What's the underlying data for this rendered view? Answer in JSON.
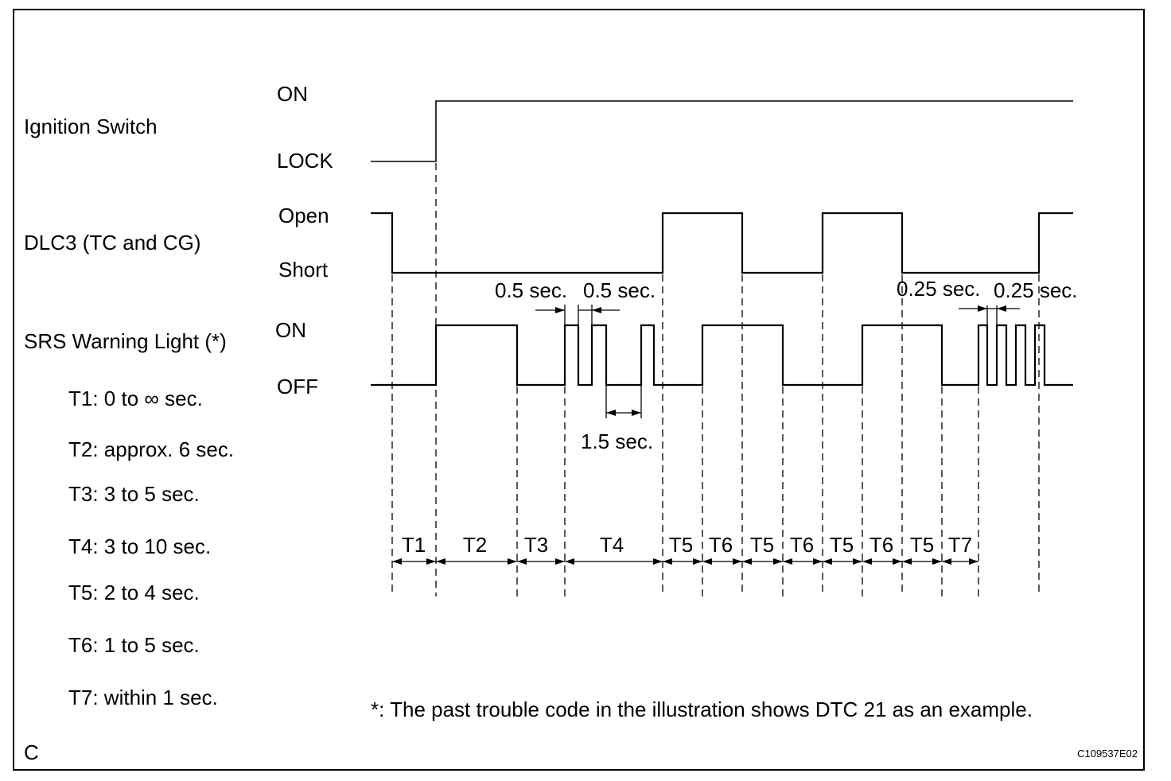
{
  "signals": {
    "ignition": {
      "name": "Ignition Switch",
      "high": "ON",
      "low": "LOCK"
    },
    "dlc3": {
      "name": "DLC3 (TC and CG)",
      "high": "Open",
      "low": "Short"
    },
    "srs": {
      "name": "SRS Warning Light (*)",
      "high": "ON",
      "low": "OFF"
    }
  },
  "legend": [
    "T1: 0 to ∞ sec.",
    "T2: approx. 6 sec.",
    "T3: 3 to 5 sec.",
    "T4: 3 to 10 sec.",
    "T5: 2 to 4 sec.",
    "T6: 1 to 5 sec.",
    "T7: within 1 sec."
  ],
  "annotations": {
    "half_sec_left": "0.5 sec.",
    "half_sec_right": "0.5 sec.",
    "one_half_sec": "1.5 sec.",
    "quarter_sec_left": "0.25 sec.",
    "quarter_sec_right": "0.25 sec."
  },
  "intervals": [
    "T1",
    "T2",
    "T3",
    "T4",
    "T5",
    "T6",
    "T5",
    "T6",
    "T5",
    "T6",
    "T5",
    "T7"
  ],
  "footnote": "*: The past trouble code in the illustration shows DTC 21 as an example.",
  "corner_letter": "C",
  "figure_code": "C109537E02"
}
